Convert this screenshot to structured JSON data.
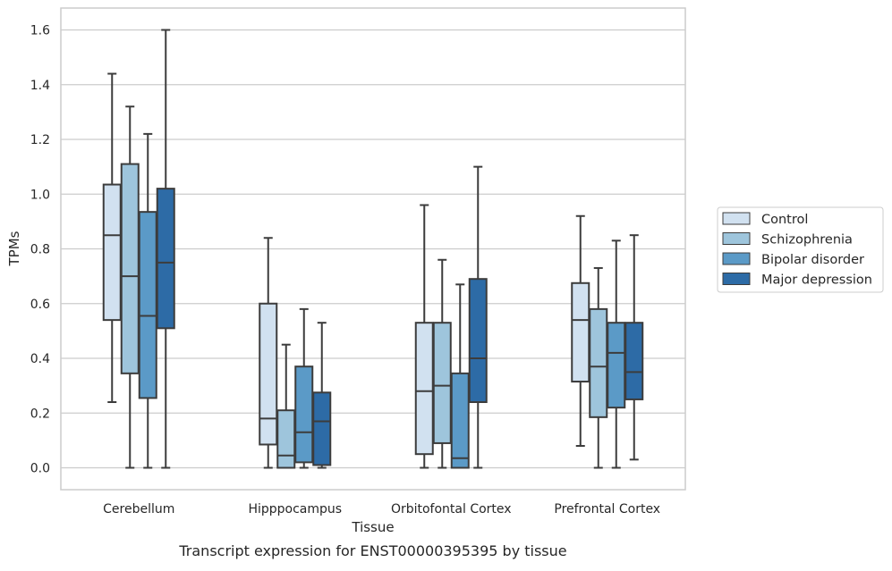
{
  "chart_data": {
    "type": "box",
    "title": "",
    "caption": "Transcript expression for ENST00000395395 by tissue",
    "xlabel": "Tissue",
    "ylabel": "TPMs",
    "ylim": [
      -0.08,
      1.68
    ],
    "yticks": [
      0.0,
      0.2,
      0.4,
      0.6,
      0.8,
      1.0,
      1.2,
      1.4,
      1.6
    ],
    "ytick_labels": [
      "0.0",
      "0.2",
      "0.4",
      "0.6",
      "0.8",
      "1.0",
      "1.2",
      "1.4",
      "1.6"
    ],
    "grid": "horizontal",
    "legend_position": "right-center",
    "categories": [
      "Cerebellum",
      "Hipppocampus",
      "Orbitofontal Cortex",
      "Prefrontal Cortex"
    ],
    "series": [
      {
        "name": "Control",
        "color": "#d1e1f0",
        "boxes": [
          {
            "whisker_low": 0.24,
            "q1": 0.54,
            "median": 0.85,
            "q3": 1.035,
            "whisker_high": 1.44
          },
          {
            "whisker_low": 0.0,
            "q1": 0.085,
            "median": 0.18,
            "q3": 0.6,
            "whisker_high": 0.84
          },
          {
            "whisker_low": 0.0,
            "q1": 0.05,
            "median": 0.28,
            "q3": 0.53,
            "whisker_high": 0.96
          },
          {
            "whisker_low": 0.08,
            "q1": 0.315,
            "median": 0.54,
            "q3": 0.675,
            "whisker_high": 0.92
          }
        ]
      },
      {
        "name": "Schizophrenia",
        "color": "#9ec5dc",
        "boxes": [
          {
            "whisker_low": 0.0,
            "q1": 0.345,
            "median": 0.7,
            "q3": 1.11,
            "whisker_high": 1.32
          },
          {
            "whisker_low": 0.0,
            "q1": 0.0,
            "median": 0.045,
            "q3": 0.21,
            "whisker_high": 0.45
          },
          {
            "whisker_low": 0.0,
            "q1": 0.09,
            "median": 0.3,
            "q3": 0.53,
            "whisker_high": 0.76
          },
          {
            "whisker_low": 0.0,
            "q1": 0.185,
            "median": 0.37,
            "q3": 0.58,
            "whisker_high": 0.73
          }
        ]
      },
      {
        "name": "Bipolar disorder",
        "color": "#5b9ac7",
        "boxes": [
          {
            "whisker_low": 0.0,
            "q1": 0.255,
            "median": 0.555,
            "q3": 0.935,
            "whisker_high": 1.22
          },
          {
            "whisker_low": 0.0,
            "q1": 0.02,
            "median": 0.13,
            "q3": 0.37,
            "whisker_high": 0.58
          },
          {
            "whisker_low": 0.0,
            "q1": 0.0,
            "median": 0.035,
            "q3": 0.345,
            "whisker_high": 0.67
          },
          {
            "whisker_low": 0.0,
            "q1": 0.22,
            "median": 0.42,
            "q3": 0.53,
            "whisker_high": 0.83
          }
        ]
      },
      {
        "name": "Major depression",
        "color": "#2d6ba6",
        "boxes": [
          {
            "whisker_low": 0.0,
            "q1": 0.51,
            "median": 0.75,
            "q3": 1.02,
            "whisker_high": 1.6
          },
          {
            "whisker_low": 0.0,
            "q1": 0.01,
            "median": 0.17,
            "q3": 0.275,
            "whisker_high": 0.53
          },
          {
            "whisker_low": 0.0,
            "q1": 0.24,
            "median": 0.4,
            "q3": 0.69,
            "whisker_high": 1.1
          },
          {
            "whisker_low": 0.03,
            "q1": 0.25,
            "median": 0.35,
            "q3": 0.53,
            "whisker_high": 0.85
          }
        ]
      }
    ]
  }
}
